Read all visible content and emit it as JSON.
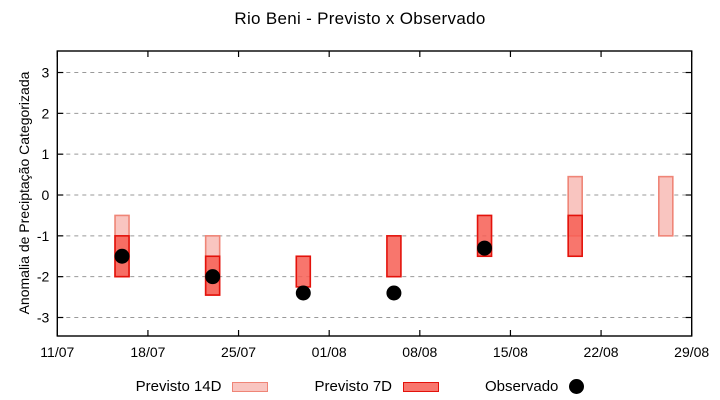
{
  "title": "Rio Beni - Previsto x Observado",
  "legend": {
    "previsto_14d": "Previsto 14D",
    "previsto_7d": "Previsto 7D",
    "observado": "Observado"
  },
  "colors": {
    "previsto_14d_fill": "#f9c5c0",
    "previsto_14d_border": "#ef8577",
    "previsto_7d_fill": "rgba(247,94,83,0.85)",
    "previsto_7d_border": "#e3120b",
    "observado": "#000000",
    "grid": "#999999",
    "axis": "#000000"
  },
  "chart_data": {
    "type": "bar",
    "subtype": "range-bars-with-scatter",
    "title": "Rio Beni - Previsto x Observado",
    "xlabel": "",
    "ylabel": "Anomalia de Preciptação Categorizada",
    "grid": "horizontal-dashed",
    "legend_position": "bottom",
    "ylim": [
      -3.453,
      3.527
    ],
    "yticks": [
      -3,
      -2,
      -1,
      0,
      1,
      2,
      3
    ],
    "x_axis": {
      "unit": "days-from-11/07",
      "range_days": [
        0,
        49
      ],
      "tick_days": [
        0,
        7,
        14,
        21,
        28,
        35,
        42,
        49
      ],
      "tick_labels": [
        "11/07",
        "18/07",
        "25/07",
        "01/08",
        "08/08",
        "15/08",
        "22/08",
        "29/08"
      ]
    },
    "series": [
      {
        "name": "Previsto 14D",
        "type": "range-bar",
        "fill": "#f9c5c0",
        "border": "#ef8577"
      },
      {
        "name": "Previsto 7D",
        "type": "range-bar",
        "fill": "rgba(247,94,83,0.85)",
        "border": "#e3120b"
      },
      {
        "name": "Observado",
        "type": "scatter",
        "color": "#000000"
      }
    ],
    "points": [
      {
        "date": "16/07",
        "day": 5,
        "previsto_14d": [
          -0.5,
          -2.0
        ],
        "previsto_7d": [
          -1.0,
          -2.0
        ],
        "observado": -1.5
      },
      {
        "date": "23/07",
        "day": 12,
        "previsto_14d": [
          -1.0,
          -2.45
        ],
        "previsto_7d": [
          -1.5,
          -2.45
        ],
        "observado": -2.0
      },
      {
        "date": "30/07",
        "day": 19,
        "previsto_14d": null,
        "previsto_7d": [
          -1.5,
          -2.25
        ],
        "observado": -2.4
      },
      {
        "date": "06/08",
        "day": 26,
        "previsto_14d": null,
        "previsto_7d": [
          -1.0,
          -2.0
        ],
        "observado": -2.4
      },
      {
        "date": "13/08",
        "day": 33,
        "previsto_14d": null,
        "previsto_7d": [
          -0.5,
          -1.5
        ],
        "observado": -1.3
      },
      {
        "date": "20/08",
        "day": 40,
        "previsto_14d": [
          0.45,
          -1.0
        ],
        "previsto_7d": [
          -0.5,
          -1.5
        ],
        "observado": null
      },
      {
        "date": "27/08",
        "day": 47,
        "previsto_14d": [
          0.45,
          -1.0
        ],
        "previsto_7d": null,
        "observado": null
      }
    ]
  }
}
